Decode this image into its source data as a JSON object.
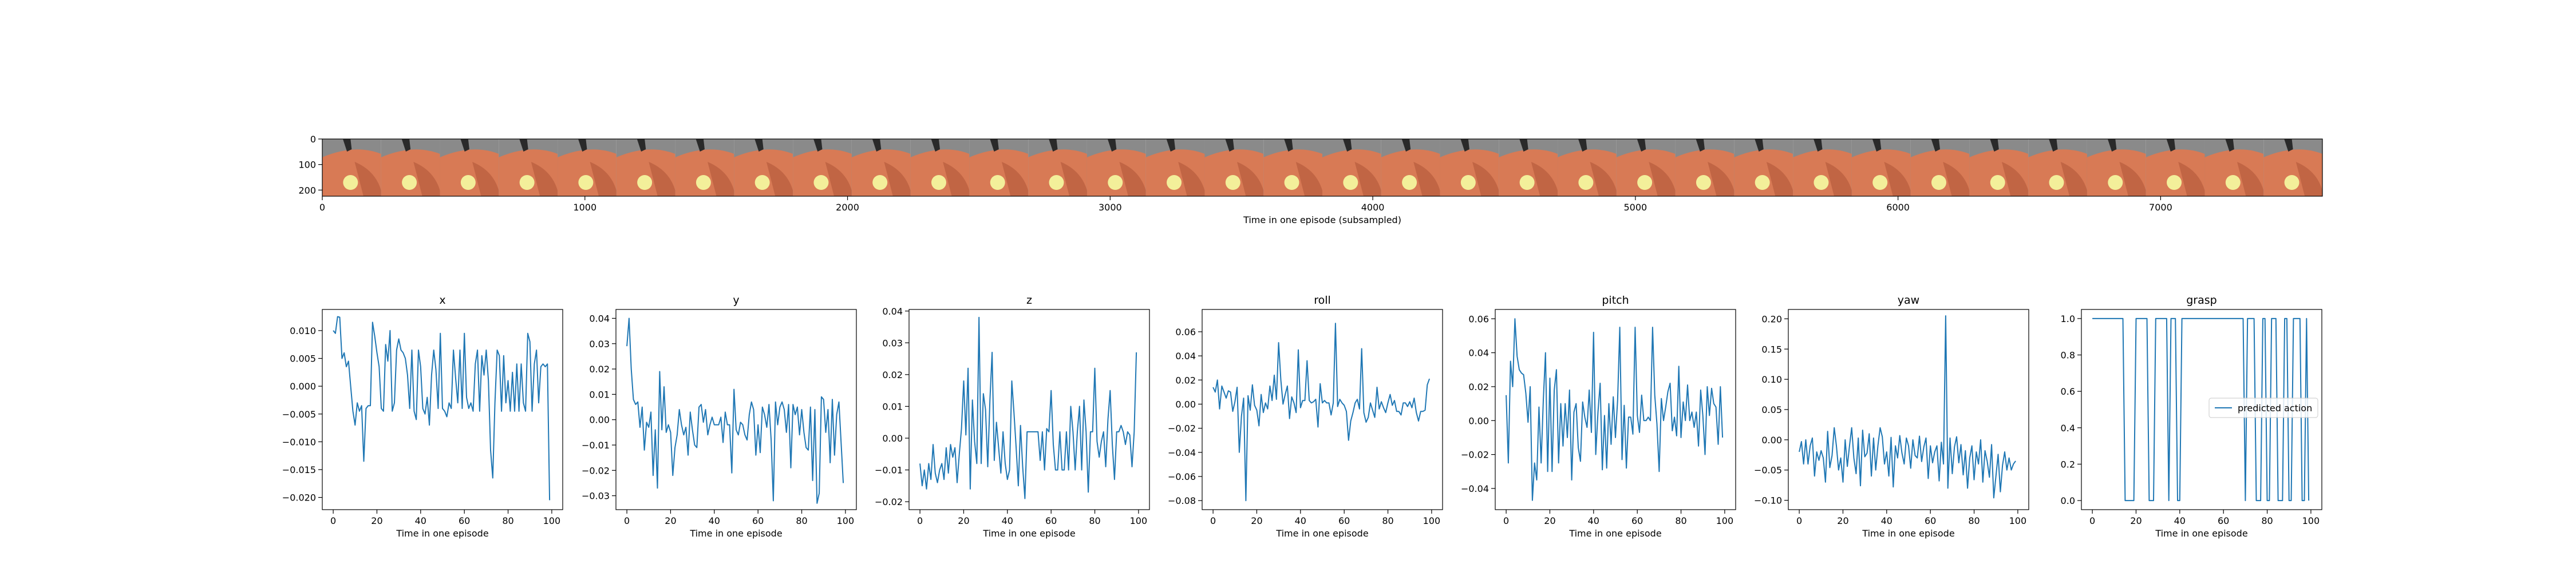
{
  "image_strip": {
    "xlabel": "Time in one episode (subsampled)",
    "x_ticks": [
      0,
      1000,
      2000,
      3000,
      4000,
      5000,
      6000,
      7000
    ],
    "y_ticks": [
      0,
      100,
      200
    ],
    "xlim": [
      0,
      7616
    ],
    "ylim": [
      224,
      0
    ],
    "frame_count": 34,
    "frame_width": 224,
    "colors": {
      "sky": "#8a8a8a",
      "object": "#d87a55",
      "object_dark": "#a94f34",
      "ball": "#f3ef9a",
      "gripper": "#2a2a2a"
    }
  },
  "chart_data": [
    {
      "type": "line",
      "title": "x",
      "xlabel": "Time in one episode",
      "ylabel": "",
      "xlim": [
        -5,
        105
      ],
      "ylim": [
        -0.0222,
        0.0138
      ],
      "x_ticks": [
        0,
        20,
        40,
        60,
        80,
        100
      ],
      "y_ticks": [
        -0.02,
        -0.015,
        -0.01,
        -0.005,
        0.0,
        0.005,
        0.01
      ],
      "y_tick_labels": [
        "−0.020",
        "−0.015",
        "−0.010",
        "−0.005",
        "0.000",
        "0.005",
        "0.010"
      ],
      "series": [
        {
          "color": "#1f77b4",
          "x_start": 0,
          "x_step": 1,
          "values": [
            0.01,
            0.0095,
            0.0125,
            0.0124,
            0.005,
            0.006,
            0.0035,
            0.0045,
            0.0,
            -0.0045,
            -0.007,
            -0.003,
            -0.0045,
            -0.0035,
            -0.0135,
            -0.004,
            -0.0035,
            -0.0035,
            0.0115,
            0.009,
            0.006,
            0.0035,
            -0.004,
            -0.0045,
            0.0075,
            0.0045,
            0.01,
            -0.0045,
            -0.003,
            0.0065,
            0.0085,
            0.0065,
            0.006,
            0.005,
            0.002,
            -0.004,
            0.0065,
            -0.0045,
            -0.006,
            0.0065,
            0.0035,
            -0.004,
            -0.005,
            -0.002,
            -0.007,
            0.002,
            0.0065,
            0.003,
            -0.004,
            0.0095,
            -0.004,
            -0.0045,
            -0.0055,
            -0.003,
            -0.004,
            0.0065,
            0.0015,
            -0.003,
            0.0065,
            -0.004,
            0.0095,
            -0.002,
            -0.004,
            -0.003,
            -0.0045,
            0.004,
            0.0065,
            -0.0045,
            0.0055,
            0.002,
            0.0065,
            0.001,
            -0.0115,
            -0.0165,
            -0.003,
            0.0065,
            0.0055,
            -0.0045,
            0.0055,
            -0.003,
            0.001,
            -0.0045,
            0.0025,
            -0.0045,
            0.004,
            -0.0045,
            0.004,
            -0.003,
            -0.0045,
            0.0095,
            0.008,
            -0.0045,
            0.004,
            0.0065,
            -0.003,
            0.0035,
            0.004,
            0.0035,
            0.004,
            -0.0205
          ]
        }
      ]
    },
    {
      "type": "line",
      "title": "y",
      "xlabel": "Time in one episode",
      "ylabel": "",
      "xlim": [
        -5,
        105
      ],
      "ylim": [
        -0.0355,
        0.0435
      ],
      "x_ticks": [
        0,
        20,
        40,
        60,
        80,
        100
      ],
      "y_ticks": [
        -0.03,
        -0.02,
        -0.01,
        0.0,
        0.01,
        0.02,
        0.03,
        0.04
      ],
      "y_tick_labels": [
        "−0.03",
        "−0.02",
        "−0.01",
        "0.00",
        "0.01",
        "0.02",
        "0.03",
        "0.04"
      ],
      "series": [
        {
          "color": "#1f77b4",
          "x_start": 0,
          "x_step": 1,
          "values": [
            0.029,
            0.04,
            0.02,
            0.008,
            0.006,
            0.007,
            -0.003,
            0.005,
            -0.012,
            -0.001,
            -0.003,
            0.003,
            -0.022,
            -0.004,
            -0.027,
            0.019,
            -0.004,
            0.013,
            -0.005,
            -0.002,
            -0.005,
            -0.022,
            -0.011,
            -0.006,
            0.004,
            -0.002,
            -0.006,
            -0.003,
            -0.014,
            0.003,
            -0.004,
            -0.01,
            -0.011,
            0.005,
            0.006,
            -0.001,
            0.004,
            -0.006,
            -0.002,
            0.001,
            -0.002,
            -0.002,
            -0.002,
            0.001,
            -0.009,
            0.003,
            -0.002,
            -0.002,
            -0.021,
            0.012,
            -0.004,
            -0.006,
            -0.001,
            -0.002,
            -0.006,
            -0.008,
            0.002,
            0.007,
            0.004,
            -0.014,
            -0.002,
            -0.013,
            0.005,
            0.002,
            -0.003,
            0.006,
            -0.008,
            -0.032,
            0.007,
            -0.002,
            0.005,
            0.007,
            0.004,
            -0.005,
            0.006,
            -0.019,
            0.006,
            0.002,
            0.005,
            -0.006,
            0.004,
            -0.005,
            -0.011,
            -0.012,
            0.005,
            -0.024,
            0.004,
            -0.033,
            -0.029,
            0.009,
            0.008,
            -0.005,
            0.004,
            -0.017,
            0.008,
            -0.014,
            0.002,
            0.007,
            -0.009,
            -0.025
          ]
        }
      ]
    },
    {
      "type": "line",
      "title": "z",
      "xlabel": "Time in one episode",
      "ylabel": "",
      "xlim": [
        -5,
        105
      ],
      "ylim": [
        -0.0225,
        0.0405
      ],
      "x_ticks": [
        0,
        20,
        40,
        60,
        80,
        100
      ],
      "y_ticks": [
        -0.02,
        -0.01,
        0.0,
        0.01,
        0.02,
        0.03,
        0.04
      ],
      "y_tick_labels": [
        "−0.02",
        "−0.01",
        "0.00",
        "0.01",
        "0.02",
        "0.03",
        "0.04"
      ],
      "series": [
        {
          "color": "#1f77b4",
          "x_start": 0,
          "x_step": 1,
          "values": [
            -0.008,
            -0.015,
            -0.01,
            -0.016,
            -0.008,
            -0.013,
            -0.002,
            -0.011,
            -0.014,
            -0.01,
            -0.008,
            -0.013,
            -0.003,
            -0.011,
            -0.002,
            -0.006,
            -0.003,
            -0.014,
            -0.005,
            0.003,
            0.018,
            0.001,
            0.022,
            -0.016,
            0.012,
            -0.001,
            -0.008,
            0.038,
            -0.008,
            0.014,
            0.009,
            -0.009,
            0.012,
            0.027,
            -0.007,
            0.005,
            -0.003,
            -0.011,
            0.002,
            -0.008,
            -0.013,
            -0.01,
            0.018,
            0.008,
            -0.003,
            -0.015,
            0.004,
            -0.009,
            -0.019,
            0.002,
            0.002,
            0.002,
            0.002,
            0.002,
            0.002,
            -0.007,
            0.002,
            -0.01,
            0.003,
            0.002,
            0.015,
            -0.002,
            -0.01,
            -0.01,
            0.002,
            -0.01,
            -0.01,
            0.002,
            -0.01,
            0.01,
            0.002,
            -0.01,
            0.002,
            0.01,
            -0.01,
            0.012,
            0.002,
            -0.017,
            0.002,
            0.002,
            0.022,
            -0.001,
            -0.006,
            -0.001,
            0.002,
            -0.009,
            0.006,
            0.015,
            -0.002,
            -0.013,
            0.002,
            0.002,
            0.004,
            0.002,
            -0.002,
            0.002,
            0.001,
            -0.009,
            0.002,
            0.027
          ]
        }
      ]
    },
    {
      "type": "line",
      "title": "roll",
      "xlabel": "Time in one episode",
      "ylabel": "",
      "xlim": [
        -5,
        105
      ],
      "ylim": [
        -0.0875,
        0.0785
      ],
      "x_ticks": [
        0,
        20,
        40,
        60,
        80,
        100
      ],
      "y_ticks": [
        -0.08,
        -0.06,
        -0.04,
        -0.02,
        0.0,
        0.02,
        0.04,
        0.06
      ],
      "y_tick_labels": [
        "−0.08",
        "−0.06",
        "−0.04",
        "−0.02",
        "0.00",
        "0.02",
        "0.04",
        "0.06"
      ],
      "series": [
        {
          "color": "#1f77b4",
          "x_start": 0,
          "x_step": 1,
          "values": [
            0.014,
            0.01,
            0.02,
            -0.004,
            0.015,
            0.01,
            0.005,
            0.011,
            0.01,
            -0.006,
            0.002,
            0.014,
            -0.04,
            -0.01,
            0.005,
            -0.08,
            0.007,
            -0.005,
            0.016,
            -0.001,
            -0.005,
            -0.018,
            0.008,
            -0.007,
            0.001,
            -0.004,
            0.015,
            0.003,
            0.024,
            0.004,
            0.051,
            0.02,
            0.0,
            0.008,
            0.015,
            -0.012,
            0.006,
            0.001,
            -0.007,
            0.045,
            -0.003,
            0.003,
            0.003,
            0.036,
            0.003,
            0.001,
            0.002,
            0.004,
            -0.019,
            0.017,
            0.001,
            0.003,
            0.001,
            0.001,
            -0.009,
            0.001,
            0.067,
            -0.002,
            0.004,
            0.001,
            -0.001,
            -0.006,
            -0.03,
            -0.014,
            -0.007,
            0.001,
            0.004,
            -0.004,
            0.046,
            -0.007,
            -0.015,
            -0.011,
            0.001,
            -0.005,
            -0.011,
            0.014,
            -0.004,
            0.002,
            -0.003,
            -0.007,
            0.001,
            0.008,
            -0.001,
            0.003,
            -0.006,
            -0.006,
            -0.009,
            0.001,
            0.001,
            -0.002,
            0.002,
            -0.003,
            0.005,
            -0.007,
            -0.014,
            -0.006,
            -0.006,
            -0.005,
            0.016,
            0.021
          ]
        }
      ]
    },
    {
      "type": "line",
      "title": "pitch",
      "xlabel": "Time in one episode",
      "ylabel": "",
      "xlim": [
        -5,
        105
      ],
      "ylim": [
        -0.0525,
        0.0655
      ],
      "x_ticks": [
        0,
        20,
        40,
        60,
        80,
        100
      ],
      "y_ticks": [
        -0.04,
        -0.02,
        0.0,
        0.02,
        0.04,
        0.06
      ],
      "y_tick_labels": [
        "−0.04",
        "−0.02",
        "0.00",
        "0.02",
        "0.04",
        "0.06"
      ],
      "series": [
        {
          "color": "#1f77b4",
          "x_start": 0,
          "x_step": 1,
          "values": [
            0.015,
            -0.025,
            0.035,
            0.02,
            0.06,
            0.038,
            0.03,
            0.028,
            0.027,
            0.016,
            -0.001,
            0.02,
            -0.047,
            -0.025,
            -0.035,
            0.008,
            -0.025,
            0.012,
            0.04,
            -0.03,
            0.025,
            -0.03,
            0.018,
            0.03,
            -0.025,
            0.01,
            -0.015,
            0.01,
            -0.01,
            0.018,
            -0.035,
            0.005,
            0.01,
            -0.016,
            -0.024,
            0.011,
            0.002,
            -0.004,
            0.018,
            -0.007,
            0.052,
            -0.02,
            0.005,
            0.022,
            -0.029,
            0.003,
            -0.028,
            0.01,
            -0.014,
            0.014,
            -0.01,
            0.012,
            0.055,
            -0.023,
            0.009,
            -0.028,
            0.002,
            0.002,
            -0.008,
            0.055,
            0.003,
            -0.007,
            0.015,
            0.0,
            0.0,
            0.002,
            0.0,
            0.055,
            0.015,
            -0.002,
            -0.03,
            0.013,
            0.0,
            0.008,
            0.017,
            0.022,
            -0.006,
            0.002,
            -0.009,
            0.032,
            -0.01,
            0.011,
            0.0,
            0.021,
            0.0,
            0.005,
            -0.004,
            0.005,
            -0.015,
            0.018,
            0.003,
            -0.02,
            0.02,
            0.003,
            0.019,
            0.01,
            0.008,
            -0.014,
            0.02,
            -0.01
          ]
        }
      ]
    },
    {
      "type": "line",
      "title": "yaw",
      "xlabel": "Time in one episode",
      "ylabel": "",
      "xlim": [
        -5,
        105
      ],
      "ylim": [
        -0.1155,
        0.2155
      ],
      "x_ticks": [
        0,
        20,
        40,
        60,
        80,
        100
      ],
      "y_ticks": [
        -0.1,
        -0.05,
        0.0,
        0.05,
        0.1,
        0.15,
        0.2
      ],
      "y_tick_labels": [
        "−0.10",
        "−0.05",
        "0.00",
        "0.05",
        "0.10",
        "0.15",
        "0.20"
      ],
      "series": [
        {
          "color": "#1f77b4",
          "x_start": 0,
          "x_step": 1,
          "values": [
            -0.02,
            -0.003,
            -0.04,
            0.0,
            -0.04,
            -0.01,
            0.003,
            -0.06,
            -0.02,
            -0.034,
            -0.018,
            -0.03,
            -0.07,
            0.014,
            -0.046,
            -0.026,
            0.02,
            -0.01,
            -0.05,
            -0.03,
            -0.07,
            0.0,
            -0.044,
            -0.01,
            0.02,
            -0.03,
            -0.056,
            0.003,
            -0.076,
            0.016,
            -0.028,
            -0.022,
            0.01,
            -0.06,
            0.003,
            -0.05,
            -0.01,
            0.02,
            0.005,
            -0.04,
            -0.02,
            -0.06,
            0.004,
            -0.078,
            -0.01,
            -0.03,
            0.007,
            -0.022,
            -0.04,
            0.003,
            -0.01,
            -0.047,
            0.0,
            -0.026,
            -0.03,
            0.006,
            -0.036,
            -0.012,
            0.003,
            -0.064,
            -0.01,
            -0.038,
            -0.02,
            -0.01,
            -0.068,
            -0.004,
            -0.04,
            0.205,
            -0.08,
            0.003,
            -0.056,
            -0.012,
            0.005,
            -0.038,
            -0.008,
            -0.058,
            -0.018,
            -0.08,
            -0.03,
            -0.01,
            -0.066,
            -0.02,
            -0.04,
            0.0,
            -0.07,
            -0.018,
            -0.036,
            -0.062,
            -0.008,
            -0.096,
            -0.06,
            -0.024,
            -0.086,
            -0.042,
            -0.02,
            -0.05,
            -0.03,
            -0.05,
            -0.04,
            -0.035
          ]
        }
      ]
    },
    {
      "type": "line",
      "title": "grasp",
      "xlabel": "Time in one episode",
      "ylabel": "",
      "xlim": [
        -5,
        105
      ],
      "ylim": [
        -0.05,
        1.05
      ],
      "x_ticks": [
        0,
        20,
        40,
        60,
        80,
        100
      ],
      "y_ticks": [
        0.0,
        0.2,
        0.4,
        0.6,
        0.8,
        1.0
      ],
      "y_tick_labels": [
        "0.0",
        "0.2",
        "0.4",
        "0.6",
        "0.8",
        "1.0"
      ],
      "legend": {
        "label": "predicted action",
        "placement": "center-right"
      },
      "series": [
        {
          "name": "predicted action",
          "color": "#1f77b4",
          "x_start": 0,
          "x_step": 1,
          "values": [
            1,
            1,
            1,
            1,
            1,
            1,
            1,
            1,
            1,
            1,
            1,
            1,
            1,
            1,
            1,
            0,
            0,
            0,
            0,
            0,
            1,
            1,
            1,
            1,
            1,
            1,
            0,
            0,
            0,
            1,
            1,
            1,
            1,
            1,
            1,
            0,
            1,
            1,
            1,
            0,
            0,
            1,
            1,
            1,
            1,
            1,
            1,
            1,
            1,
            1,
            1,
            1,
            1,
            1,
            1,
            1,
            1,
            1,
            1,
            1,
            1,
            1,
            1,
            1,
            1,
            1,
            1,
            1,
            1,
            1,
            0,
            1,
            1,
            1,
            1,
            0,
            0,
            0,
            1,
            1,
            0,
            0,
            1,
            1,
            1,
            0,
            0,
            0,
            1,
            1,
            0,
            0,
            1,
            1,
            1,
            1,
            0,
            0,
            1,
            0
          ]
        }
      ]
    }
  ]
}
